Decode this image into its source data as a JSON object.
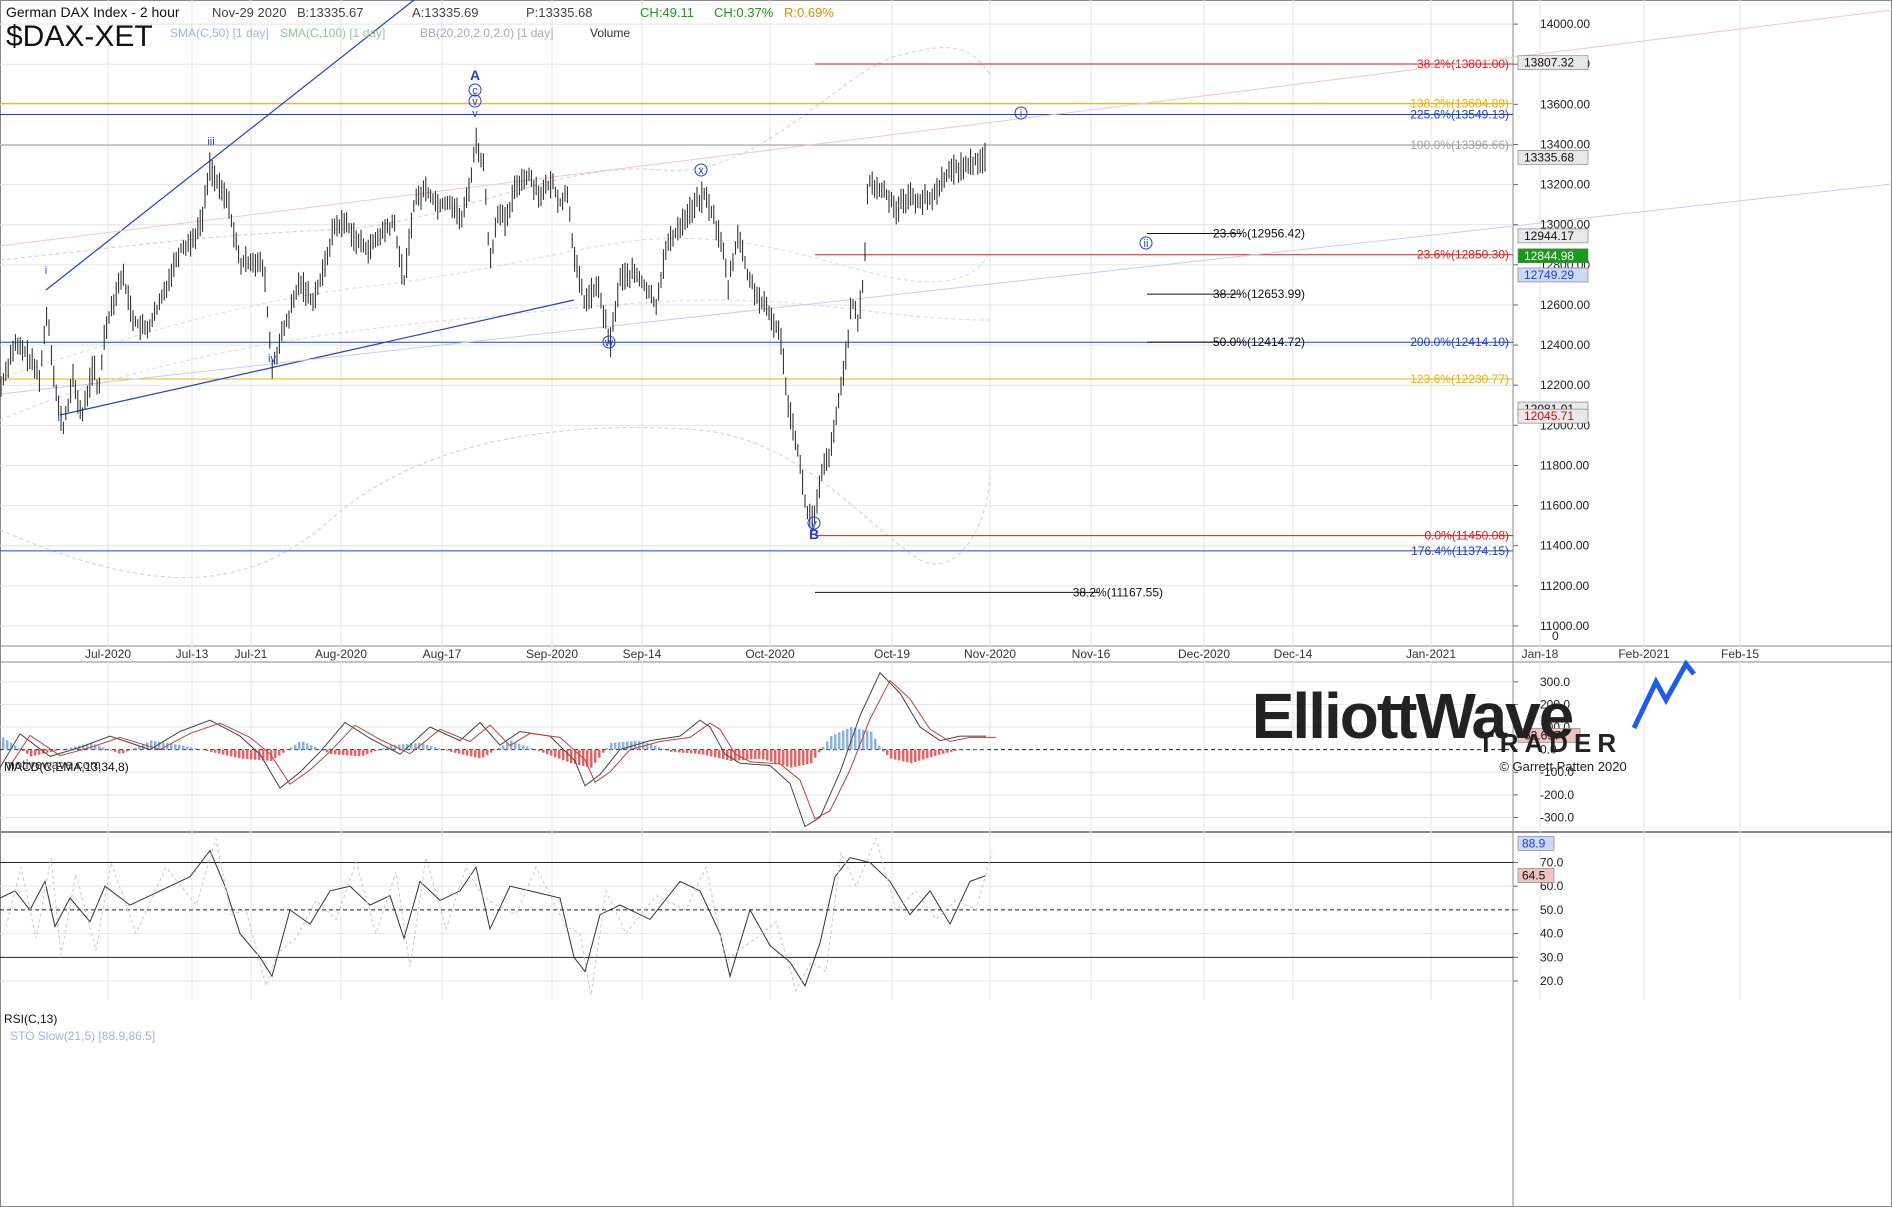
{
  "header": {
    "title": "German DAX Index - 2 hour",
    "date": "Nov-29 2020",
    "bid": "B:13335.67",
    "ask": "A:13335.69",
    "last": "P:13335.68",
    "change_points": "CH:49.11",
    "change_pct": "CH:0.37%",
    "range_pct": "R:0.69%",
    "symbol": "$DAX-XET",
    "studies": [
      "SMA(C,50) [1 day]",
      "SMA(C,100) [1 day]",
      "BB(20,20,2.0,2.0) [1 day]",
      "Volume"
    ]
  },
  "watermark": "motivewave.com",
  "brand": {
    "name": "ElliottWave",
    "sub": "TRADER",
    "copyright": "© Garrett Patten 2020"
  },
  "colors": {
    "grid": "#e4e4e4",
    "blue": "#1f3fd6",
    "red": "#e11c1c",
    "orange": "#f0b000",
    "gray": "#a0a0a0",
    "macd_pos": "#8ab4dc",
    "macd_neg": "#e06666"
  },
  "chart_data": [
    {
      "type": "candlestick",
      "title": "German DAX Index - 2 hour",
      "x_ticks": [
        "Jul-2020",
        "Jul-13",
        "Jul-21",
        "Aug-2020",
        "Aug-17",
        "Sep-2020",
        "Sep-14",
        "Oct-2020",
        "Oct-19",
        "Nov-2020",
        "Nov-16",
        "Dec-2020",
        "Dec-14",
        "Jan-2021",
        "Jan-18",
        "Feb-2021",
        "Feb-15"
      ],
      "y_ticks": [
        11000,
        11200,
        11400,
        11600,
        11800,
        12000,
        12200,
        12400,
        12600,
        12800,
        13000,
        13200,
        13400,
        13600,
        13800,
        14000
      ],
      "ylim": [
        10900,
        14120
      ],
      "close_path": [
        [
          0,
          12180
        ],
        [
          14,
          12400
        ],
        [
          26,
          12360
        ],
        [
          40,
          12240
        ],
        [
          47,
          12580
        ],
        [
          56,
          12160
        ],
        [
          63,
          11980
        ],
        [
          73,
          12230
        ],
        [
          82,
          12040
        ],
        [
          94,
          12310
        ],
        [
          98,
          12130
        ],
        [
          105,
          12480
        ],
        [
          112,
          12600
        ],
        [
          122,
          12760
        ],
        [
          134,
          12520
        ],
        [
          146,
          12470
        ],
        [
          158,
          12580
        ],
        [
          168,
          12720
        ],
        [
          180,
          12880
        ],
        [
          192,
          12920
        ],
        [
          202,
          13020
        ],
        [
          210,
          13300
        ],
        [
          218,
          13190
        ],
        [
          228,
          13120
        ],
        [
          240,
          12800
        ],
        [
          252,
          12830
        ],
        [
          264,
          12780
        ],
        [
          272,
          12280
        ],
        [
          280,
          12420
        ],
        [
          290,
          12560
        ],
        [
          300,
          12720
        ],
        [
          312,
          12620
        ],
        [
          322,
          12740
        ],
        [
          334,
          12990
        ],
        [
          346,
          13010
        ],
        [
          358,
          12910
        ],
        [
          370,
          12880
        ],
        [
          382,
          12960
        ],
        [
          394,
          13010
        ],
        [
          404,
          12710
        ],
        [
          414,
          13110
        ],
        [
          426,
          13180
        ],
        [
          438,
          13100
        ],
        [
          450,
          13120
        ],
        [
          462,
          13020
        ],
        [
          470,
          13210
        ],
        [
          476,
          13420
        ],
        [
          484,
          13280
        ],
        [
          490,
          12800
        ],
        [
          498,
          13080
        ],
        [
          506,
          13000
        ],
        [
          516,
          13200
        ],
        [
          528,
          13250
        ],
        [
          540,
          13150
        ],
        [
          552,
          13210
        ],
        [
          560,
          13110
        ],
        [
          568,
          13160
        ],
        [
          574,
          12840
        ],
        [
          584,
          12620
        ],
        [
          598,
          12690
        ],
        [
          610,
          12400
        ],
        [
          620,
          12730
        ],
        [
          634,
          12760
        ],
        [
          644,
          12700
        ],
        [
          656,
          12600
        ],
        [
          666,
          12880
        ],
        [
          680,
          13000
        ],
        [
          692,
          13080
        ],
        [
          704,
          13150
        ],
        [
          712,
          13060
        ],
        [
          722,
          12900
        ],
        [
          728,
          12690
        ],
        [
          738,
          12960
        ],
        [
          748,
          12740
        ],
        [
          758,
          12640
        ],
        [
          768,
          12560
        ],
        [
          780,
          12460
        ],
        [
          788,
          12120
        ],
        [
          798,
          11880
        ],
        [
          806,
          11580
        ],
        [
          814,
          11520
        ],
        [
          822,
          11760
        ],
        [
          832,
          11900
        ],
        [
          840,
          12160
        ],
        [
          846,
          12360
        ],
        [
          852,
          12620
        ],
        [
          858,
          12500
        ],
        [
          864,
          12760
        ],
        [
          868,
          13220
        ],
        [
          876,
          13180
        ],
        [
          886,
          13160
        ],
        [
          896,
          13080
        ],
        [
          908,
          13140
        ],
        [
          920,
          13120
        ],
        [
          932,
          13130
        ],
        [
          944,
          13240
        ],
        [
          956,
          13280
        ],
        [
          968,
          13300
        ],
        [
          986,
          13340
        ]
      ],
      "price_labels": [
        {
          "value": 13807.32,
          "text": "13807.32",
          "style": "gray"
        },
        {
          "value": 13335.68,
          "text": "13335.68",
          "style": "gray"
        },
        {
          "value": 12944.17,
          "text": "12944.17",
          "style": "gray"
        },
        {
          "value": 12844.98,
          "text": "12844.98",
          "style": "green"
        },
        {
          "value": 12749.29,
          "text": "12749.29",
          "style": "blue"
        },
        {
          "value": 12081.01,
          "text": "12081.01",
          "style": "gray"
        },
        {
          "value": 12045.71,
          "text": "12045.71",
          "style": "redtxt"
        }
      ],
      "zero_label": "0",
      "hlines": [
        {
          "value": 13801.0,
          "label": "38.2%(13801.00)",
          "color": "red",
          "x1": 815
        },
        {
          "value": 13604.89,
          "label": "138.2%(13604.89)",
          "color": "orange",
          "x1": 0
        },
        {
          "value": 13549.13,
          "label": "225.6%(13549.13)",
          "color": "blue",
          "x1": 0
        },
        {
          "value": 13396.66,
          "label": "100.0%(13396.66)",
          "color": "gray",
          "x1": 0
        },
        {
          "value": 12850.3,
          "label": "23.6%(12850.30)",
          "color": "red",
          "x1": 815
        },
        {
          "value": 12414.1,
          "label": "200.0%(12414.10)",
          "color": "blue",
          "x1": 0
        },
        {
          "value": 12230.77,
          "label": "123.6%(12230.77)",
          "color": "orange",
          "x1": 0
        },
        {
          "value": 11450.08,
          "label": "0.0%(11450.08)",
          "color": "red",
          "x1": 815
        },
        {
          "value": 11374.15,
          "label": "176.4%(11374.15)",
          "color": "blue",
          "x1": 0
        }
      ],
      "retracements": [
        {
          "value": 12956.42,
          "label": "23.6%(12956.42)",
          "x1": 1147,
          "x2": 1305
        },
        {
          "value": 12653.99,
          "label": "38.2%(12653.99)",
          "x1": 1147,
          "x2": 1305
        },
        {
          "value": 12414.72,
          "label": "50.0%(12414.72)",
          "x1": 1147,
          "x2": 1305
        },
        {
          "value": 11167.55,
          "label": "38.2%(11167.55)",
          "x1": 815,
          "x2": 1163
        }
      ],
      "wave_labels": [
        {
          "text": "i",
          "x": 46,
          "y": 274,
          "circle": false
        },
        {
          "text": "ii",
          "x": 60,
          "y": 421,
          "circle": false
        },
        {
          "text": "iii",
          "x": 211,
          "y": 145,
          "circle": false
        },
        {
          "text": "iv",
          "x": 272,
          "y": 362,
          "circle": false
        },
        {
          "text": "v",
          "x": 475,
          "y": 117,
          "circle": false
        },
        {
          "text": "A",
          "x": 475,
          "y": 80,
          "circle": false,
          "bold": true
        },
        {
          "text": "c",
          "x": 475,
          "y": 94,
          "circle": true
        },
        {
          "text": "v",
          "x": 475,
          "y": 105,
          "circle": true
        },
        {
          "text": "w",
          "x": 609,
          "y": 346,
          "circle": true
        },
        {
          "text": "x",
          "x": 701,
          "y": 174,
          "circle": true
        },
        {
          "text": "y",
          "x": 814,
          "y": 527,
          "circle": true
        },
        {
          "text": "B",
          "x": 814,
          "y": 539,
          "circle": false,
          "bold": true
        },
        {
          "text": "i",
          "x": 1021,
          "y": 117,
          "circle": true
        },
        {
          "text": "ii",
          "x": 1146,
          "y": 247,
          "circle": true
        }
      ]
    },
    {
      "type": "bar",
      "title": "MACD(C,EMA,13,34,8)",
      "y_ticks": [
        300.0,
        200.0,
        100.0,
        0.0,
        -100.0,
        -200.0,
        -300.0
      ],
      "ylim": [
        -360,
        370
      ],
      "current_value": "62.697",
      "macd_path": [
        [
          0,
          -80
        ],
        [
          20,
          70
        ],
        [
          50,
          -30
        ],
        [
          80,
          10
        ],
        [
          110,
          60
        ],
        [
          150,
          0
        ],
        [
          180,
          80
        ],
        [
          210,
          130
        ],
        [
          240,
          60
        ],
        [
          260,
          -20
        ],
        [
          280,
          -170
        ],
        [
          300,
          -100
        ],
        [
          320,
          -10
        ],
        [
          345,
          120
        ],
        [
          370,
          50
        ],
        [
          400,
          -20
        ],
        [
          430,
          100
        ],
        [
          460,
          40
        ],
        [
          480,
          120
        ],
        [
          500,
          20
        ],
        [
          520,
          80
        ],
        [
          550,
          60
        ],
        [
          575,
          -50
        ],
        [
          585,
          -160
        ],
        [
          600,
          -110
        ],
        [
          620,
          0
        ],
        [
          650,
          40
        ],
        [
          680,
          60
        ],
        [
          700,
          130
        ],
        [
          710,
          100
        ],
        [
          725,
          -20
        ],
        [
          740,
          -60
        ],
        [
          770,
          -70
        ],
        [
          790,
          -150
        ],
        [
          805,
          -340
        ],
        [
          820,
          -300
        ],
        [
          840,
          -100
        ],
        [
          860,
          150
        ],
        [
          880,
          340
        ],
        [
          900,
          250
        ],
        [
          920,
          100
        ],
        [
          940,
          40
        ],
        [
          960,
          60
        ],
        [
          986,
          60
        ]
      ],
      "hist_path": [
        [
          0,
          60
        ],
        [
          30,
          -30
        ],
        [
          60,
          0
        ],
        [
          90,
          30
        ],
        [
          120,
          -20
        ],
        [
          150,
          40
        ],
        [
          180,
          20
        ],
        [
          210,
          -10
        ],
        [
          240,
          -40
        ],
        [
          270,
          -50
        ],
        [
          300,
          40
        ],
        [
          330,
          -20
        ],
        [
          360,
          -30
        ],
        [
          390,
          20
        ],
        [
          420,
          30
        ],
        [
          450,
          -10
        ],
        [
          480,
          -40
        ],
        [
          510,
          40
        ],
        [
          540,
          -10
        ],
        [
          570,
          -60
        ],
        [
          590,
          -80
        ],
        [
          610,
          30
        ],
        [
          640,
          40
        ],
        [
          670,
          -10
        ],
        [
          700,
          -20
        ],
        [
          730,
          -50
        ],
        [
          760,
          -40
        ],
        [
          790,
          -80
        ],
        [
          810,
          -60
        ],
        [
          830,
          60
        ],
        [
          850,
          100
        ],
        [
          870,
          80
        ],
        [
          880,
          0
        ],
        [
          890,
          -40
        ],
        [
          910,
          -60
        ],
        [
          940,
          -20
        ],
        [
          960,
          0
        ],
        [
          980,
          0
        ]
      ]
    },
    {
      "type": "line",
      "title": "RSI(C,13)",
      "subtitle": "STO Slow(21,5) [88.9,86.5]",
      "y_ticks": [
        70.0,
        60.0,
        50.0,
        40.0,
        30.0,
        20.0
      ],
      "ylim": [
        12,
        82
      ],
      "rsi_value": "64.5",
      "sto_value": "88.9",
      "rsi_path": [
        [
          0,
          55
        ],
        [
          15,
          58
        ],
        [
          30,
          50
        ],
        [
          45,
          62
        ],
        [
          55,
          43
        ],
        [
          70,
          55
        ],
        [
          90,
          45
        ],
        [
          105,
          60
        ],
        [
          130,
          52
        ],
        [
          160,
          58
        ],
        [
          190,
          64
        ],
        [
          210,
          75
        ],
        [
          225,
          60
        ],
        [
          240,
          40
        ],
        [
          260,
          30
        ],
        [
          272,
          22
        ],
        [
          290,
          50
        ],
        [
          310,
          44
        ],
        [
          330,
          58
        ],
        [
          350,
          60
        ],
        [
          370,
          52
        ],
        [
          390,
          56
        ],
        [
          404,
          38
        ],
        [
          420,
          62
        ],
        [
          440,
          54
        ],
        [
          460,
          58
        ],
        [
          476,
          68
        ],
        [
          490,
          42
        ],
        [
          510,
          60
        ],
        [
          530,
          58
        ],
        [
          560,
          55
        ],
        [
          574,
          30
        ],
        [
          585,
          24
        ],
        [
          600,
          48
        ],
        [
          620,
          52
        ],
        [
          650,
          46
        ],
        [
          680,
          62
        ],
        [
          700,
          58
        ],
        [
          720,
          40
        ],
        [
          730,
          22
        ],
        [
          750,
          50
        ],
        [
          770,
          35
        ],
        [
          790,
          28
        ],
        [
          805,
          18
        ],
        [
          820,
          36
        ],
        [
          835,
          64
        ],
        [
          850,
          72
        ],
        [
          870,
          70
        ],
        [
          890,
          62
        ],
        [
          910,
          48
        ],
        [
          930,
          58
        ],
        [
          950,
          44
        ],
        [
          970,
          62
        ],
        [
          986,
          64.5
        ]
      ]
    }
  ]
}
